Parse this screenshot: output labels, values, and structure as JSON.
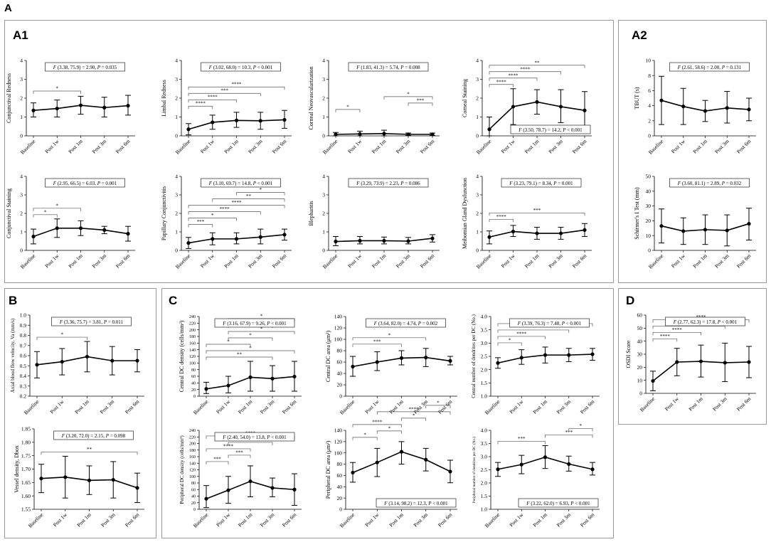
{
  "figure": {
    "label_main": "A",
    "panel_labels": {
      "A1": "A1",
      "A2": "A2",
      "B": "B",
      "C": "C",
      "D": "D"
    },
    "x_categories": [
      "Baseline",
      "Post 1w",
      "Post 1m",
      "Post 3m",
      "Post 6m"
    ]
  },
  "chart_data": [
    {
      "id": "conj-redness",
      "type": "line",
      "ylabel": "Conjunctival Redness",
      "ylim": [
        0,
        4
      ],
      "yticks": [
        0,
        1,
        2,
        3,
        4
      ],
      "values": [
        1.35,
        1.45,
        1.62,
        1.5,
        1.6
      ],
      "low": [
        1.0,
        1.0,
        1.15,
        1.0,
        1.1
      ],
      "high": [
        1.75,
        1.9,
        2.1,
        2.05,
        2.15
      ],
      "stat_parts": [
        "F",
        " (3.38, 75.9) = 2.90, ",
        "P",
        " = 0.035"
      ],
      "stat_pos": "top",
      "sig": [
        {
          "from": 0,
          "to": 2,
          "label": "*"
        }
      ]
    },
    {
      "id": "limbal-redness",
      "type": "line",
      "ylabel": "Limbal Redness",
      "ylim": [
        0,
        4
      ],
      "yticks": [
        0,
        1,
        2,
        3,
        4
      ],
      "values": [
        0.35,
        0.72,
        0.82,
        0.8,
        0.85
      ],
      "low": [
        0.05,
        0.35,
        0.45,
        0.35,
        0.4
      ],
      "high": [
        0.65,
        1.1,
        1.25,
        1.25,
        1.35
      ],
      "stat_parts": [
        "F",
        " (3.02, 68.0) = 10.3, ",
        "P",
        " < 0.001"
      ],
      "stat_pos": "top",
      "sig": [
        {
          "from": 0,
          "to": 1,
          "label": "****"
        },
        {
          "from": 0,
          "to": 2,
          "label": "****"
        },
        {
          "from": 0,
          "to": 3,
          "label": "***"
        },
        {
          "from": 0,
          "to": 4,
          "label": "****"
        }
      ]
    },
    {
      "id": "corneal-neovascularization",
      "type": "line",
      "ylabel": "Corneal Neovascularization",
      "ylim": [
        0,
        4
      ],
      "yticks": [
        0,
        1,
        2,
        3,
        4
      ],
      "values": [
        0.08,
        0.1,
        0.12,
        0.08,
        0.08
      ],
      "low": [
        0.0,
        0.0,
        0.0,
        0.02,
        0.02
      ],
      "high": [
        0.18,
        0.25,
        0.3,
        0.15,
        0.15
      ],
      "stat_parts": [
        "F",
        " (1.83, 41.3) = 5.74, ",
        "P",
        " = 0.008"
      ],
      "stat_pos": "top",
      "sig": [
        {
          "from": 0,
          "to": 1,
          "label": "*"
        },
        {
          "from": 3,
          "to": 4,
          "label": "***"
        },
        {
          "from": 2,
          "to": 4,
          "label": "*"
        }
      ]
    },
    {
      "id": "corneal-staining",
      "type": "line",
      "ylabel": "Corneal Staining",
      "ylim": [
        0,
        4
      ],
      "yticks": [
        0,
        1,
        2,
        3,
        4
      ],
      "values": [
        0.35,
        1.55,
        1.8,
        1.55,
        1.35
      ],
      "low": [
        0.0,
        0.6,
        1.15,
        0.7,
        0.35
      ],
      "high": [
        1.0,
        2.5,
        2.45,
        2.45,
        2.35
      ],
      "stat_parts": [
        "F",
        " (3.50, 78.7) = 14.2, ",
        "P",
        " < 0.001"
      ],
      "stat_pos": "bottom-right",
      "sig": [
        {
          "from": 0,
          "to": 1,
          "label": "****"
        },
        {
          "from": 0,
          "to": 2,
          "label": "****"
        },
        {
          "from": 0,
          "to": 3,
          "label": "****"
        },
        {
          "from": 0,
          "to": 4,
          "label": "**"
        }
      ]
    },
    {
      "id": "tbut",
      "type": "line",
      "ylabel": "TBUT (s)",
      "ylim": [
        0,
        10
      ],
      "yticks": [
        0,
        2,
        4,
        6,
        8,
        10
      ],
      "values": [
        4.7,
        3.9,
        3.3,
        3.7,
        3.5
      ],
      "low": [
        1.5,
        1.5,
        1.9,
        1.7,
        2.0
      ],
      "high": [
        7.9,
        6.3,
        4.7,
        5.9,
        5.0
      ],
      "stat_parts": [
        "F",
        " (2.61, 58.6) = 2.00, ",
        "P",
        " = 0.131"
      ],
      "stat_pos": "top",
      "sig": []
    },
    {
      "id": "conj-staining",
      "type": "line",
      "ylabel": "Conjunctival Staining",
      "ylim": [
        0,
        4
      ],
      "yticks": [
        0,
        1,
        2,
        3,
        4
      ],
      "values": [
        0.75,
        1.2,
        1.2,
        1.1,
        0.9
      ],
      "low": [
        0.35,
        0.7,
        0.8,
        0.9,
        0.5
      ],
      "high": [
        1.15,
        1.7,
        1.6,
        1.3,
        1.3
      ],
      "stat_parts": [
        "F",
        " (2.95, 66.5) = 6.03, ",
        "P",
        " = 0.001"
      ],
      "stat_pos": "top",
      "sig": [
        {
          "from": 0,
          "to": 1,
          "label": "*"
        },
        {
          "from": 0,
          "to": 2,
          "label": "*"
        }
      ]
    },
    {
      "id": "papillary-conj",
      "type": "line",
      "ylabel": "Papillary Conjunctivitis",
      "ylim": [
        0,
        4
      ],
      "yticks": [
        0,
        1,
        2,
        3,
        4
      ],
      "values": [
        0.4,
        0.62,
        0.62,
        0.72,
        0.85
      ],
      "low": [
        0.1,
        0.3,
        0.35,
        0.35,
        0.55
      ],
      "high": [
        0.7,
        0.95,
        0.95,
        1.15,
        1.15
      ],
      "stat_parts": [
        "F",
        " (3.10, 69.7) = 14.8, ",
        "P",
        " < 0.001"
      ],
      "stat_pos": "top",
      "sig": [
        {
          "from": 0,
          "to": 1,
          "label": "***"
        },
        {
          "from": 0,
          "to": 2,
          "label": "*"
        },
        {
          "from": 0,
          "to": 3,
          "label": "****"
        },
        {
          "from": 0,
          "to": 4,
          "label": "****"
        },
        {
          "from": 1,
          "to": 4,
          "label": "**"
        },
        {
          "from": 2,
          "to": 4,
          "label": "*"
        }
      ]
    },
    {
      "id": "blepharitis",
      "type": "line",
      "ylabel": "Blepharitis",
      "ylim": [
        0,
        4
      ],
      "yticks": [
        0,
        1,
        2,
        3,
        4
      ],
      "values": [
        0.48,
        0.52,
        0.52,
        0.5,
        0.65
      ],
      "low": [
        0.25,
        0.35,
        0.35,
        0.35,
        0.45
      ],
      "high": [
        0.75,
        0.75,
        0.72,
        0.7,
        0.85
      ],
      "stat_parts": [
        "F",
        " (3.29, 73.9) = 2.23, ",
        "P",
        " = 0.086"
      ],
      "stat_pos": "top",
      "sig": []
    },
    {
      "id": "mgd",
      "type": "line",
      "ylabel": "Meibomian Gland Dysfunction",
      "ylim": [
        0,
        4
      ],
      "yticks": [
        0,
        1,
        2,
        3,
        4
      ],
      "values": [
        0.72,
        1.02,
        0.92,
        0.92,
        1.1
      ],
      "low": [
        0.35,
        0.75,
        0.6,
        0.6,
        0.75
      ],
      "high": [
        1.05,
        1.35,
        1.25,
        1.25,
        1.45
      ],
      "stat_parts": [
        "F",
        " (3.23, 79.1) = 8.34, ",
        "P",
        " = 0.001"
      ],
      "stat_pos": "top",
      "sig": [
        {
          "from": 0,
          "to": 1,
          "label": "****"
        },
        {
          "from": 0,
          "to": 4,
          "label": "***"
        }
      ]
    },
    {
      "id": "schirmer",
      "type": "line",
      "ylabel": "Schirmer's I Test (mm)",
      "ylim": [
        0,
        50
      ],
      "yticks": [
        0,
        10,
        20,
        30,
        40,
        50
      ],
      "values": [
        16.5,
        13,
        14,
        13.5,
        18
      ],
      "low": [
        5,
        4,
        4,
        3,
        7
      ],
      "high": [
        28,
        22,
        24,
        24,
        28.5
      ],
      "stat_parts": [
        "F",
        " (3.60, 81.1) = 2.89, ",
        "P",
        " = 0.032"
      ],
      "stat_pos": "top",
      "sig": []
    },
    {
      "id": "axial-flow",
      "type": "line",
      "ylabel": "Axial blood flow velocity, Va (mm/s)",
      "ylim": [
        0.2,
        1.0
      ],
      "yticks": [
        0.2,
        0.3,
        0.4,
        0.5,
        0.6,
        0.7,
        0.8,
        0.9,
        1.0
      ],
      "decimals": 1,
      "values": [
        0.51,
        0.54,
        0.59,
        0.55,
        0.55
      ],
      "low": [
        0.38,
        0.41,
        0.44,
        0.41,
        0.44
      ],
      "high": [
        0.64,
        0.67,
        0.74,
        0.69,
        0.66
      ],
      "stat_parts": [
        "F",
        " (3.36, 75.7) = 3.81, ",
        "P",
        " = 0.011"
      ],
      "stat_pos": "top",
      "sig": [
        {
          "from": 0,
          "to": 2,
          "label": "*"
        }
      ]
    },
    {
      "id": "vessel-density",
      "type": "line",
      "ylabel": "Vessel density, Dbox",
      "ylim": [
        1.55,
        1.85
      ],
      "yticks": [
        1.55,
        1.6,
        1.65,
        1.7,
        1.75,
        1.8,
        1.85
      ],
      "decimals": 2,
      "values": [
        1.665,
        1.67,
        1.658,
        1.66,
        1.63
      ],
      "low": [
        1.612,
        1.592,
        1.605,
        1.592,
        1.575
      ],
      "high": [
        1.718,
        1.748,
        1.712,
        1.728,
        1.685
      ],
      "stat_parts": [
        "F",
        " (3.20, 72.0) = 2.15, ",
        "P",
        " = 0.098"
      ],
      "stat_pos": "top",
      "sig": [
        {
          "from": 0,
          "to": 4,
          "label": "**"
        }
      ]
    },
    {
      "id": "central-dc-density",
      "type": "line",
      "ylabel": "Central DC density (cells/mm²)",
      "ylim": [
        0,
        240
      ],
      "yticks": [
        0,
        20,
        40,
        60,
        80,
        100,
        120,
        140,
        160,
        180,
        200,
        220,
        240
      ],
      "values": [
        22,
        32,
        57,
        53,
        59
      ],
      "low": [
        8,
        10,
        15,
        15,
        15
      ],
      "high": [
        42,
        60,
        105,
        92,
        105
      ],
      "stat_parts": [
        "F",
        " (3.16, 67.9) = 9.26, ",
        "P",
        " < 0.001"
      ],
      "stat_pos": "top",
      "sig": [
        {
          "from": 0,
          "to": 3,
          "label": "**"
        },
        {
          "from": 0,
          "to": 4,
          "label": "*"
        },
        {
          "from": 0,
          "to": 2,
          "label": "*"
        },
        {
          "from": 1,
          "to": 3,
          "label": "*"
        },
        {
          "from": 1,
          "to": 4,
          "label": "*"
        },
        {
          "from": 1,
          "to": 3,
          "label": "**"
        },
        {
          "from": 1,
          "to": 4,
          "label": "*"
        }
      ]
    },
    {
      "id": "central-dc-area",
      "type": "line",
      "ylabel": "Central DC area (μm²)",
      "ylim": [
        0,
        140
      ],
      "yticks": [
        0,
        20,
        40,
        60,
        80,
        100,
        120,
        140
      ],
      "values": [
        52,
        60,
        67,
        68,
        62
      ],
      "low": [
        35,
        45,
        55,
        52,
        55
      ],
      "high": [
        70,
        78,
        80,
        84,
        70
      ],
      "stat_parts": [
        "F",
        " (3.64, 82.0) = 4.74, ",
        "P",
        " = 0.002"
      ],
      "stat_pos": "top",
      "sig": [
        {
          "from": 0,
          "to": 2,
          "label": "***"
        },
        {
          "from": 0,
          "to": 3,
          "label": "*"
        }
      ]
    },
    {
      "id": "central-dendrites",
      "type": "line",
      "ylabel": "Central number of dendrites per DC (No.)",
      "ylim": [
        1.0,
        4.0
      ],
      "yticks": [
        1.0,
        1.5,
        2.0,
        2.5,
        3.0,
        3.5,
        4.0
      ],
      "decimals": 1,
      "values": [
        2.25,
        2.45,
        2.55,
        2.55,
        2.58
      ],
      "low": [
        2.05,
        2.2,
        2.25,
        2.3,
        2.35
      ],
      "high": [
        2.45,
        2.75,
        2.85,
        2.8,
        2.8
      ],
      "stat_parts": [
        "F",
        " (3.39, 76.3) = 7.48, ",
        "P",
        " < 0.001"
      ],
      "stat_pos": "top",
      "sig": [
        {
          "from": 0,
          "to": 1,
          "label": "*"
        },
        {
          "from": 0,
          "to": 2,
          "label": "****"
        },
        {
          "from": 0,
          "to": 3,
          "label": "*"
        },
        {
          "from": 0,
          "to": 4,
          "label": "****"
        }
      ]
    },
    {
      "id": "peripheral-dc-density",
      "type": "line",
      "ylabel": "Peripheral DC density (cells/mm²)",
      "ylim": [
        0,
        240
      ],
      "yticks": [
        0,
        20,
        40,
        60,
        80,
        100,
        120,
        140,
        160,
        180,
        200,
        220,
        240
      ],
      "values": [
        32,
        58,
        85,
        65,
        60
      ],
      "low": [
        5,
        18,
        38,
        38,
        12
      ],
      "high": [
        72,
        100,
        132,
        95,
        108
      ],
      "stat_parts": [
        "F",
        " (2.40, 54.0) = 13.8, ",
        "P",
        " < 0.001"
      ],
      "stat_pos": "top",
      "sig": [
        {
          "from": 0,
          "to": 1,
          "label": "***"
        },
        {
          "from": 1,
          "to": 2,
          "label": "***"
        },
        {
          "from": 0,
          "to": 2,
          "label": "****"
        },
        {
          "from": 1,
          "to": 3,
          "label": "**"
        },
        {
          "from": 0,
          "to": 4,
          "label": "****"
        }
      ]
    },
    {
      "id": "peripheral-dc-area",
      "type": "line",
      "ylabel": "Peripheral DC area (μm²)",
      "ylim": [
        0,
        140
      ],
      "yticks": [
        0,
        20,
        40,
        60,
        80,
        100,
        120,
        140
      ],
      "values": [
        65,
        83,
        102,
        88,
        67
      ],
      "low": [
        48,
        58,
        80,
        68,
        47
      ],
      "high": [
        83,
        108,
        120,
        108,
        87
      ],
      "stat_parts": [
        "F",
        " (3.14, 98.2) = 12.3, ",
        "P",
        " < 0.001"
      ],
      "stat_pos": "bottom-right",
      "sig": [
        {
          "from": 0,
          "to": 1,
          "label": "*"
        },
        {
          "from": 1,
          "to": 2,
          "label": "*"
        },
        {
          "from": 0,
          "to": 2,
          "label": "****"
        },
        {
          "from": 2,
          "to": 3,
          "label": "*"
        },
        {
          "from": 1,
          "to": 4,
          "label": "****"
        },
        {
          "from": 3,
          "to": 4,
          "label": "*"
        }
      ]
    },
    {
      "id": "peripheral-dendrites",
      "type": "line",
      "ylabel": "Peripheral number of dendrites per DC (No.)",
      "ylim": [
        1.0,
        4.0
      ],
      "yticks": [
        1.0,
        1.5,
        2.0,
        2.5,
        3.0,
        3.5,
        4.0
      ],
      "decimals": 1,
      "values": [
        2.52,
        2.7,
        2.98,
        2.72,
        2.52
      ],
      "low": [
        2.25,
        2.35,
        2.55,
        2.45,
        2.3
      ],
      "high": [
        2.78,
        3.05,
        3.42,
        3.02,
        2.78
      ],
      "stat_parts": [
        "F",
        " (3.22, 62.0) = 6.93, ",
        "P",
        " < 0.001"
      ],
      "stat_pos": "bottom-right",
      "sig": [
        {
          "from": 0,
          "to": 2,
          "label": "***"
        },
        {
          "from": 2,
          "to": 4,
          "label": "***"
        },
        {
          "from": 3,
          "to": 4,
          "label": "*"
        }
      ]
    },
    {
      "id": "osdi",
      "type": "line",
      "ylabel": "OSDI Score",
      "ylim": [
        0,
        60
      ],
      "yticks": [
        0,
        10,
        20,
        30,
        40,
        50,
        60
      ],
      "values": [
        9.5,
        24,
        24.5,
        23.5,
        24
      ],
      "low": [
        2,
        13.5,
        12.5,
        9,
        12
      ],
      "high": [
        17,
        34.5,
        37,
        38.5,
        36
      ],
      "stat_parts": [
        "F",
        " (2.77, 62.3) = 17.8, ",
        "P",
        " < 0.001"
      ],
      "stat_pos": "top",
      "sig": [
        {
          "from": 0,
          "to": 1,
          "label": "****"
        },
        {
          "from": 0,
          "to": 2,
          "label": "****"
        },
        {
          "from": 0,
          "to": 3,
          "label": "***"
        },
        {
          "from": 0,
          "to": 4,
          "label": "****"
        }
      ]
    }
  ]
}
